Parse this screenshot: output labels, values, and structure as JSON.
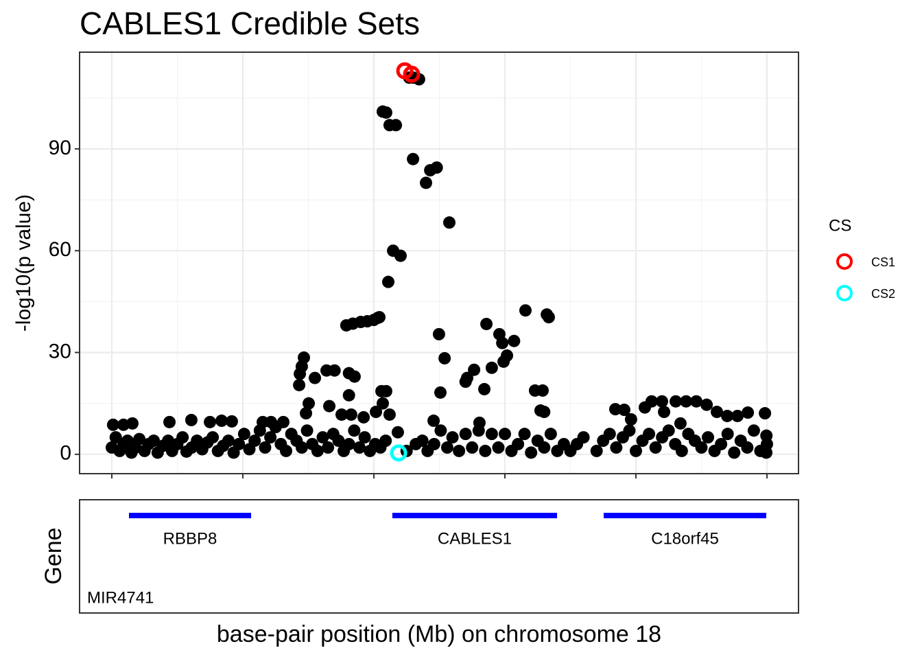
{
  "chart_data": {
    "type": "scatter",
    "title": "CABLES1 Credible Sets",
    "y_label": "-log10(p value)",
    "x_label": "base-pair position (Mb) on chromosome 18",
    "gene_label": "Gene",
    "legend_title": "CS",
    "grid": true,
    "xlim": [
      20.4754,
      21.0241
    ],
    "xticks": [
      20.5,
      20.6,
      20.7,
      20.8,
      20.9,
      21.0
    ],
    "xminorticks": [
      20.55,
      20.65,
      20.75,
      20.85,
      20.95
    ],
    "ylim": [
      -5.7,
      118.5
    ],
    "yticks": [
      0,
      30,
      60,
      90
    ],
    "yminorticks": [
      15,
      45,
      75,
      105
    ],
    "background": {
      "color": "#000000",
      "x": [
        20.7068,
        20.7094,
        20.712,
        20.7168,
        20.727,
        20.73,
        20.7345,
        20.7299,
        20.7398,
        20.743,
        20.748,
        20.7576,
        20.7147,
        20.7204,
        20.711,
        20.7042,
        20.679,
        20.684,
        20.69,
        20.695,
        20.7,
        20.703,
        20.8157,
        20.832,
        20.8335,
        20.7859,
        20.7958,
        20.7497,
        20.798,
        20.807,
        20.8016,
        20.799,
        20.79,
        20.754,
        20.7765,
        20.7712,
        20.77,
        20.7843,
        20.7508,
        20.7456,
        20.6466,
        20.645,
        20.6435,
        20.643,
        20.655,
        20.6639,
        20.67,
        20.681,
        20.6853,
        20.681,
        20.666,
        20.6503,
        20.6482,
        20.6754,
        20.6827,
        20.6922,
        20.7016,
        20.7058,
        20.7094,
        20.7068,
        20.712,
        20.823,
        20.8288,
        20.8272,
        20.83,
        20.7806,
        20.7183,
        20.8843,
        20.8911,
        20.8963,
        20.9068,
        20.912,
        20.9199,
        20.9215,
        20.9304,
        20.9383,
        20.9461,
        20.954,
        20.9618,
        20.9697,
        20.9775,
        20.9854,
        20.9985,
        20.934,
        20.501,
        20.5089,
        20.5157,
        20.544,
        20.5607,
        20.5749,
        20.5838,
        20.5916,
        20.6152,
        20.6215,
        20.6309,
        20.5,
        20.503,
        20.506,
        20.509,
        20.512,
        20.515,
        20.518,
        20.521,
        20.525,
        20.528,
        20.532,
        20.535,
        20.539,
        20.543,
        20.546,
        20.55,
        20.554,
        20.557,
        20.561,
        20.565,
        20.569,
        20.573,
        20.577,
        20.581,
        20.585,
        20.589,
        20.593,
        20.597,
        20.601,
        20.605,
        20.609,
        20.613,
        20.617,
        20.621,
        20.625,
        20.629,
        20.633,
        20.637,
        20.641,
        20.645,
        20.649,
        20.653,
        20.657,
        20.661,
        20.665,
        20.669,
        20.673,
        20.677,
        20.681,
        20.685,
        20.689,
        20.693,
        20.697,
        20.701,
        20.705,
        20.709,
        20.725,
        20.732,
        20.737,
        20.741,
        20.746,
        20.751,
        20.756,
        20.76,
        20.765,
        20.77,
        20.775,
        20.78,
        20.785,
        20.79,
        20.795,
        20.8,
        20.805,
        20.81,
        20.815,
        20.82,
        20.825,
        20.83,
        20.835,
        20.84,
        20.845,
        20.85,
        20.855,
        20.86,
        20.87,
        20.875,
        20.88,
        20.885,
        20.89,
        20.895,
        20.9,
        20.905,
        20.91,
        20.915,
        20.92,
        20.925,
        20.93,
        20.935,
        20.94,
        20.945,
        20.95,
        20.955,
        20.96,
        20.965,
        20.97,
        20.975,
        20.98,
        20.985,
        20.99,
        20.995,
        21.0,
        20.9995,
        20.9996
      ],
      "values": [
        101,
        100.7,
        97,
        97,
        111,
        111,
        110.5,
        87,
        80,
        83.7,
        84.5,
        68.3,
        60,
        58.5,
        50.8,
        40.4,
        38,
        38.5,
        39,
        39.2,
        39.6,
        40.2,
        42.4,
        41.2,
        40.4,
        38.4,
        35.4,
        35.4,
        32.8,
        33.4,
        29.1,
        27.3,
        25.5,
        28.3,
        24.9,
        22.5,
        21.4,
        19.2,
        18.2,
        9.9,
        28.5,
        25.9,
        23.7,
        20.4,
        22.5,
        24.7,
        24.7,
        23.9,
        22.9,
        17.4,
        14.2,
        15,
        12.1,
        11.7,
        11.7,
        10.9,
        12.5,
        18.6,
        18.6,
        15,
        11.7,
        18.8,
        18.8,
        12.9,
        12.5,
        9.3,
        6.5,
        13.3,
        13.1,
        10.3,
        13.8,
        15.6,
        15.6,
        12.5,
        15.6,
        15.6,
        15.6,
        14.6,
        12.5,
        11.3,
        11.3,
        12.3,
        12.1,
        9.1,
        8.7,
        8.7,
        9.1,
        9.5,
        10.1,
        9.5,
        9.9,
        9.7,
        9.5,
        9.5,
        9.5,
        2,
        5,
        1,
        3,
        4,
        0.5,
        2,
        4.5,
        1,
        3,
        4,
        0.5,
        2.5,
        4,
        1,
        3,
        5,
        0.8,
        2,
        4,
        1.5,
        3.5,
        5,
        1,
        2.5,
        4,
        0.5,
        3,
        6,
        1.5,
        4,
        7,
        2,
        5,
        8,
        3,
        1,
        6,
        4,
        2,
        7,
        3,
        1,
        5,
        2,
        6,
        4,
        1,
        3,
        7,
        2,
        5,
        1,
        3,
        2,
        4,
        1,
        3,
        4,
        1,
        3,
        7,
        2,
        5,
        1,
        6,
        2,
        7,
        1,
        6,
        2,
        6,
        1,
        3,
        6,
        0.5,
        4,
        2,
        6,
        1,
        3,
        1,
        3,
        5,
        1,
        4,
        6,
        2,
        5,
        7,
        1,
        4,
        6,
        2,
        5,
        7,
        3,
        1,
        6,
        4,
        2,
        5,
        1,
        3,
        6,
        0.5,
        4,
        2,
        7,
        1,
        3,
        0.5,
        5.5
      ]
    },
    "series": [
      {
        "name": "CS1",
        "color": "#ff0000",
        "x": [
          20.7236,
          20.7288
        ],
        "values": [
          113,
          112
        ]
      },
      {
        "name": "CS2",
        "color": "#00ffff",
        "x": [
          20.7189
        ],
        "values": [
          0.4
        ]
      }
    ],
    "gene_color": "#0000ff",
    "genes": [
      {
        "name": "RBBP8",
        "start": 20.5131,
        "end": 20.6063
      },
      {
        "name": "CABLES1",
        "start": 20.7141,
        "end": 20.8398
      },
      {
        "name": "C18orf45",
        "start": 20.8754,
        "end": 20.9995
      },
      {
        "name": "MIR4741"
      }
    ]
  }
}
